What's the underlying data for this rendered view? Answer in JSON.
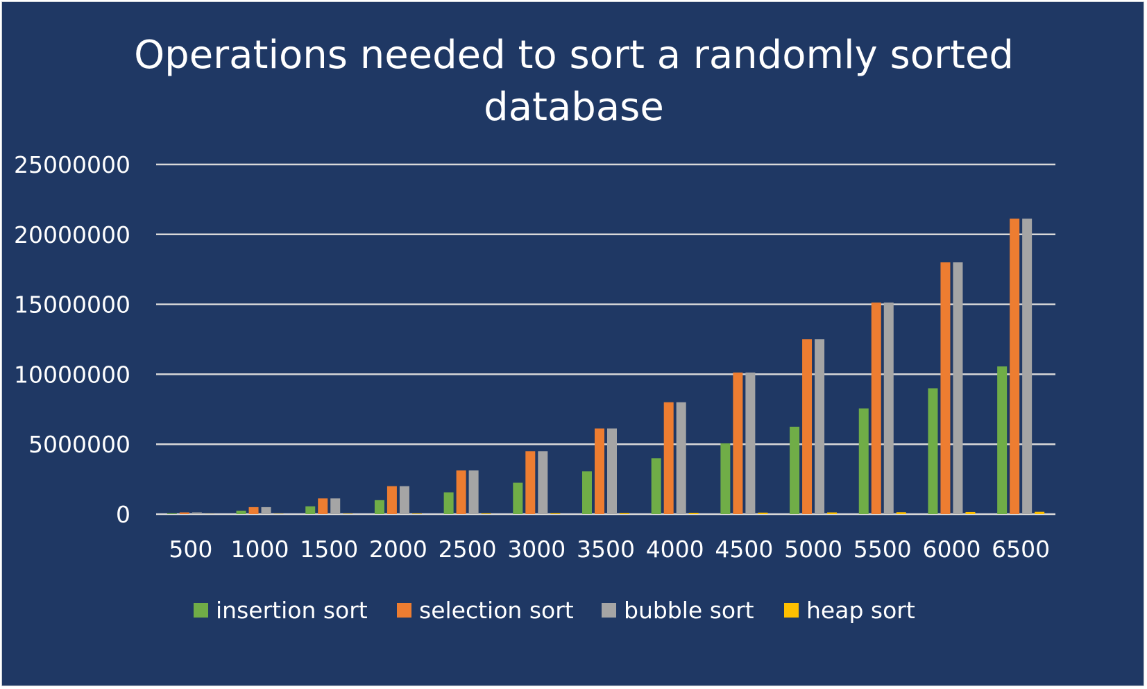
{
  "chart_data": {
    "type": "bar",
    "title_lines": [
      "Operations needed to sort a randomly sorted",
      "database"
    ],
    "xlabel": "",
    "ylabel": "",
    "categories": [
      "500",
      "1000",
      "1500",
      "2000",
      "2500",
      "3000",
      "3500",
      "4000",
      "4500",
      "5000",
      "5500",
      "6000",
      "6500"
    ],
    "ylim": [
      0,
      25000000
    ],
    "yticks": [
      "0",
      "5000000",
      "10000000",
      "15000000",
      "20000000",
      "25000000"
    ],
    "grid": true,
    "legend_position": "bottom",
    "series": [
      {
        "name": "insertion sort",
        "color": "#70ad47",
        "values": [
          62000,
          250000,
          560000,
          1000000,
          1560000,
          2250000,
          3060000,
          4000000,
          5060000,
          6250000,
          7560000,
          9000000,
          10560000
        ]
      },
      {
        "name": "selection sort",
        "color": "#ed7d31",
        "values": [
          125000,
          500000,
          1125000,
          2000000,
          3125000,
          4500000,
          6125000,
          8000000,
          10125000,
          12500000,
          15125000,
          18000000,
          21125000
        ]
      },
      {
        "name": "bubble sort",
        "color": "#a5a5a5",
        "values": [
          125000,
          500000,
          1125000,
          2000000,
          3125000,
          4500000,
          6125000,
          8000000,
          10125000,
          12500000,
          15125000,
          18000000,
          21125000
        ]
      },
      {
        "name": "heap sort",
        "color": "#ffc000",
        "values": [
          9000,
          20000,
          31000,
          44000,
          56000,
          70000,
          83000,
          96000,
          110000,
          123000,
          137000,
          152000,
          166000
        ]
      }
    ]
  }
}
